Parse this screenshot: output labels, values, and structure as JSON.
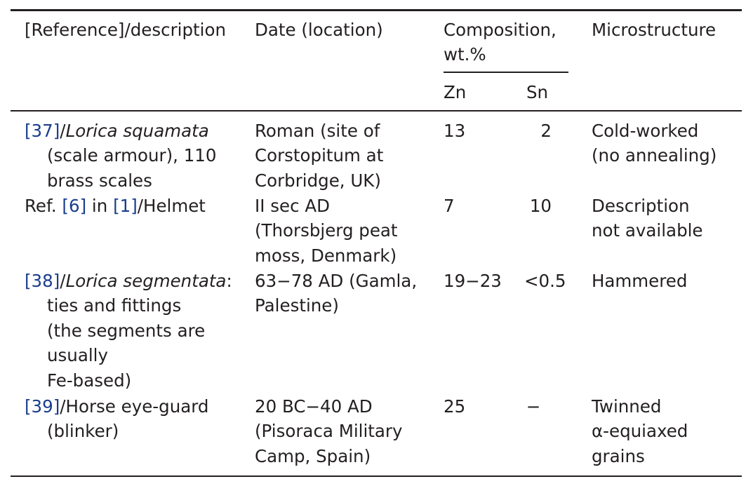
{
  "header": {
    "col1": "[Reference]/description",
    "col2": "Date (location)",
    "col3_line1": "Composition,",
    "col3_line2": "wt.%",
    "col3_sub_zn": "Zn",
    "col3_sub_sn": "Sn",
    "col4": "Microstructure"
  },
  "rows": [
    {
      "ref": "[37]",
      "sep": "/",
      "desc_italic": "Lorica squamata",
      "desc_line1_rest": "",
      "desc_lines": [
        "(scale armour), 110",
        "brass scales"
      ],
      "date_lines": [
        "Roman (site of",
        "Corstopitum at",
        "Corbridge, UK)"
      ],
      "zn": "13",
      "sn": "2",
      "micro_lines": [
        "Cold-worked",
        "(no annealing)"
      ]
    },
    {
      "prefix": "Ref. ",
      "ref": "[6]",
      "mid": " in ",
      "ref2": "[1]",
      "suffix": "/Helmet",
      "date_lines": [
        "II sec AD",
        "(Thorsbjerg peat",
        "moss, Denmark)"
      ],
      "zn": "7",
      "sn": "10",
      "micro_lines": [
        "Description",
        "not available"
      ]
    },
    {
      "ref": "[38]",
      "sep": "/",
      "desc_italic": "Lorica segmentata",
      "desc_line1_rest": ":",
      "desc_lines": [
        "ties and fittings",
        "(the segments are",
        "usually",
        "Fe-based)"
      ],
      "date_lines": [
        "63−78 AD (Gamla,",
        "Palestine)"
      ],
      "zn": "19−23",
      "sn": "<0.5",
      "micro_lines": [
        "Hammered"
      ]
    },
    {
      "ref": "[39]",
      "suffix": "/Horse eye-guard",
      "desc_lines": [
        "(blinker)"
      ],
      "date_lines": [
        "20 BC−40 AD",
        "(Pisoraca Military",
        "Camp, Spain)"
      ],
      "zn": "25",
      "sn": "−",
      "micro_lines": [
        "Twinned",
        "α-equiaxed",
        "grains"
      ]
    }
  ]
}
